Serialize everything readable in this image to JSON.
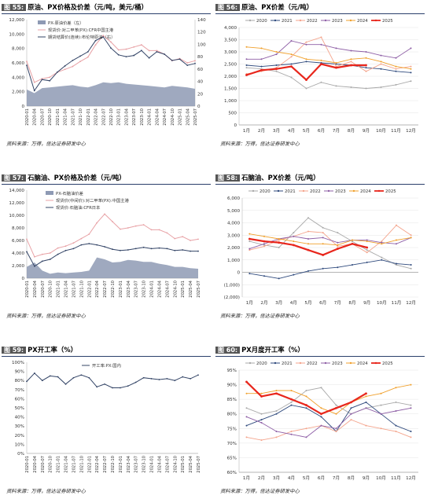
{
  "source_label": "资料来源：万得，信达证券研发中心",
  "panels": [
    {
      "num": "图 55:",
      "title": "原油、PX价格及价差（元/吨，美元/桶）"
    },
    {
      "num": "图 56:",
      "title": "原油、PX价差（元/吨）"
    },
    {
      "num": "图 57:",
      "title": "石脑油、PX价格及价差（元/吨）"
    },
    {
      "num": "图 58:",
      "title": "石脑油、PX价差（元/吨）"
    },
    {
      "num": "图 59:",
      "title": "PX开工率（%）"
    },
    {
      "num": "图 60:",
      "title": "PX月度开工率（%）"
    }
  ],
  "colors": {
    "area": "#8e9ab4",
    "pink": "#e8a2a6",
    "navy": "#334466",
    "s2020": "#a9a9a9",
    "s2021": "#2f4a7d",
    "s2022": "#f4a48c",
    "s2023": "#8e5fa6",
    "s2024": "#f0a02c",
    "s2025": "#e8261c",
    "rule": "#2a3f6b"
  },
  "chart_data": [
    {
      "type": "line",
      "title": "原油、PX价格及价差（元/吨，美元/桶）",
      "x": [
        "2020-01",
        "2020-04",
        "2020-07",
        "2020-10",
        "2021-01",
        "2021-04",
        "2021-07",
        "2021-10",
        "2022-01",
        "2022-04",
        "2022-07",
        "2022-10",
        "2023-01",
        "2023-04",
        "2023-07",
        "2023-10",
        "2024-01",
        "2024-04",
        "2024-07",
        "2024-10",
        "2025-01",
        "2025-04",
        "2025-07"
      ],
      "ylim_left": [
        0,
        12000
      ],
      "yticks_left": [
        0,
        2000,
        4000,
        6000,
        8000,
        10000,
        12000
      ],
      "ylim_right": [
        0,
        140
      ],
      "yticks_right": [
        0,
        20,
        40,
        60,
        80,
        100,
        120,
        140
      ],
      "series": [
        {
          "name": "PX-原油价差（左）",
          "style": "area",
          "axis": "left",
          "values": [
            2300,
            1800,
            2500,
            2600,
            2700,
            2800,
            2900,
            2700,
            2600,
            2900,
            3300,
            3200,
            3300,
            3100,
            3000,
            2900,
            2800,
            2700,
            2600,
            2800,
            2700,
            2600,
            2400
          ]
        },
        {
          "name": "现货价:对二甲苯(PX):CFR中国主港",
          "style": "line",
          "axis": "left",
          "values": [
            6200,
            3300,
            3800,
            4000,
            4700,
            5100,
            5500,
            6200,
            6800,
            8500,
            9800,
            8900,
            7800,
            7900,
            8200,
            8500,
            7700,
            7700,
            7200,
            6300,
            6600,
            6000,
            6300
          ]
        },
        {
          "name": "期货结算价(连续):布伦特原油（右）",
          "style": "line",
          "axis": "right",
          "values": [
            66,
            25,
            43,
            41,
            55,
            65,
            74,
            81,
            88,
            106,
            112,
            94,
            83,
            80,
            82,
            90,
            78,
            88,
            84,
            74,
            76,
            66,
            69
          ]
        }
      ]
    },
    {
      "type": "line",
      "title": "原油、PX价差（元/吨）",
      "categories": [
        "1月",
        "2月",
        "3月",
        "4月",
        "5月",
        "6月",
        "7月",
        "8月",
        "9月",
        "10月",
        "11月",
        "12月"
      ],
      "ylim": [
        0,
        4000
      ],
      "yticks": [
        0,
        500,
        1000,
        1500,
        2000,
        2500,
        3000,
        3500,
        4000
      ],
      "series": [
        {
          "name": "2020",
          "values": [
            2350,
            2300,
            2200,
            1950,
            1500,
            1750,
            1600,
            1550,
            1500,
            1550,
            1650,
            1800
          ]
        },
        {
          "name": "2021",
          "values": [
            2450,
            2400,
            2450,
            2500,
            2600,
            2550,
            2500,
            2450,
            2350,
            2300,
            2200,
            2150
          ]
        },
        {
          "name": "2022",
          "values": [
            2100,
            2200,
            2350,
            2800,
            3400,
            3600,
            2400,
            2600,
            2200,
            2500,
            2300,
            2400
          ]
        },
        {
          "name": "2023",
          "values": [
            2700,
            2700,
            2900,
            3450,
            3300,
            3300,
            3150,
            3050,
            3000,
            2850,
            2750,
            3150
          ]
        },
        {
          "name": "2024",
          "values": [
            3200,
            3150,
            3000,
            2900,
            2700,
            2650,
            2550,
            2700,
            2750,
            2600,
            2400,
            2300
          ]
        },
        {
          "name": "2025",
          "values": [
            2050,
            2250,
            2300,
            2400,
            1850,
            2500,
            2350,
            2450,
            2450,
            null,
            null,
            null
          ]
        }
      ]
    },
    {
      "type": "line",
      "title": "石脑油、PX价格及价差（元/吨）",
      "x": [
        "2020-01",
        "2020-04",
        "2020-07",
        "2020-10",
        "2021-01",
        "2021-04",
        "2021-07",
        "2021-10",
        "2022-01",
        "2022-04",
        "2022-07",
        "2022-10",
        "2023-01",
        "2023-04",
        "2023-07",
        "2023-10",
        "2024-01",
        "2024-04",
        "2024-07",
        "2024-10",
        "2025-01",
        "2025-04",
        "2025-07"
      ],
      "ylim": [
        0,
        14000
      ],
      "yticks": [
        0,
        2000,
        4000,
        6000,
        8000,
        10000,
        12000,
        14000
      ],
      "series": [
        {
          "name": "PX-石脑油价差",
          "style": "area",
          "values": [
            1800,
            2500,
            1200,
            700,
            900,
            800,
            900,
            1000,
            1200,
            3300,
            3000,
            2500,
            2600,
            2900,
            2800,
            2600,
            2600,
            2300,
            2100,
            1800,
            1800,
            1600,
            1500
          ]
        },
        {
          "name": "现货价(中间价):对二甲苯(PX):中国主港",
          "style": "line",
          "values": [
            6200,
            3400,
            3800,
            4000,
            4800,
            5100,
            5600,
            6300,
            7000,
            8800,
            10200,
            9000,
            7800,
            8000,
            8300,
            8500,
            7700,
            7700,
            7200,
            6300,
            6600,
            6000,
            6200
          ]
        },
        {
          "name": "现货价:石脑油:CFR日本",
          "style": "line",
          "values": [
            4200,
            1900,
            2700,
            3000,
            3800,
            4400,
            4700,
            5300,
            5500,
            5300,
            5000,
            4600,
            4400,
            4500,
            4700,
            4900,
            4700,
            4800,
            4700,
            4400,
            4500,
            4300,
            4300
          ]
        }
      ]
    },
    {
      "type": "line",
      "title": "石脑油、PX价差（元/吨）",
      "categories": [
        "1月",
        "2月",
        "3月",
        "4月",
        "5月",
        "6月",
        "7月",
        "8月",
        "9月",
        "10月",
        "11月",
        "12月"
      ],
      "ylim": [
        -2000,
        6000
      ],
      "yticks": [
        -2000,
        -1000,
        0,
        1000,
        2000,
        3000,
        4000,
        5000,
        6000
      ],
      "ytick_labels": [
        "(2,000)",
        "(1,000)",
        "0",
        "1,000",
        "2,000",
        "3,000",
        "4,000",
        "5,000",
        "6,000"
      ],
      "series": [
        {
          "name": "2020",
          "values": [
            2500,
            2200,
            2000,
            3200,
            4400,
            3600,
            3200,
            2500,
            1800,
            1200,
            600,
            300
          ]
        },
        {
          "name": "2021",
          "values": [
            -100,
            -300,
            -500,
            -200,
            100,
            300,
            400,
            600,
            800,
            1000,
            700,
            600
          ]
        },
        {
          "name": "2022",
          "values": [
            1800,
            2100,
            2600,
            2900,
            3300,
            3200,
            2100,
            2300,
            1600,
            2500,
            3800,
            3000
          ]
        },
        {
          "name": "2023",
          "values": [
            1900,
            2300,
            2700,
            2900,
            2700,
            2800,
            2400,
            2600,
            2600,
            2400,
            2300,
            2800
          ]
        },
        {
          "name": "2024",
          "values": [
            3100,
            2900,
            2700,
            2500,
            2300,
            2300,
            2200,
            2600,
            2500,
            2300,
            2600,
            2800
          ]
        },
        {
          "name": "2025",
          "values": [
            2700,
            2500,
            2400,
            2200,
            1800,
            1400,
            1900,
            2300,
            2000,
            null,
            null,
            null
          ]
        }
      ]
    },
    {
      "type": "line",
      "title": "PX开工率（%）",
      "x": [
        "2020-01",
        "2020-04",
        "2020-07",
        "2020-10",
        "2021-01",
        "2021-04",
        "2021-07",
        "2021-10",
        "2022-01",
        "2022-04",
        "2022-07",
        "2022-10",
        "2023-01",
        "2023-04",
        "2023-07",
        "2023-10",
        "2024-01",
        "2024-04",
        "2024-07",
        "2024-10",
        "2025-01",
        "2025-04",
        "2025-07"
      ],
      "ylim": [
        0,
        100
      ],
      "yticks": [
        0,
        10,
        20,
        30,
        40,
        50,
        60,
        70,
        80,
        90,
        100
      ],
      "ytick_labels": [
        "0%",
        "10%",
        "20%",
        "30%",
        "40%",
        "50%",
        "60%",
        "70%",
        "80%",
        "90%",
        "100%"
      ],
      "series": [
        {
          "name": "开工率:PX:国内",
          "values": [
            79,
            88,
            80,
            85,
            84,
            76,
            83,
            86,
            83,
            73,
            76,
            72,
            72,
            74,
            78,
            83,
            82,
            81,
            82,
            80,
            84,
            82,
            86
          ]
        }
      ]
    },
    {
      "type": "line",
      "title": "PX月度开工率（%）",
      "categories": [
        "1月",
        "2月",
        "3月",
        "4月",
        "5月",
        "6月",
        "7月",
        "8月",
        "9月",
        "10月",
        "11月",
        "12月"
      ],
      "ylim": [
        60,
        95
      ],
      "yticks": [
        60,
        65,
        70,
        75,
        80,
        85,
        90,
        95
      ],
      "ytick_labels": [
        "60%",
        "65%",
        "70%",
        "75%",
        "80%",
        "85%",
        "90%",
        "95%"
      ],
      "series": [
        {
          "name": "2020",
          "values": [
            82,
            80,
            81,
            84,
            88,
            89,
            83,
            80,
            82,
            83,
            84,
            83
          ]
        },
        {
          "name": "2021",
          "values": [
            76,
            78,
            80,
            83,
            82,
            79,
            74,
            82,
            84,
            80,
            76,
            74
          ]
        },
        {
          "name": "2022",
          "values": [
            72,
            71,
            72,
            74,
            75,
            76,
            74,
            78,
            76,
            75,
            74,
            72
          ]
        },
        {
          "name": "2023",
          "values": [
            79,
            77,
            74,
            73,
            72,
            76,
            75,
            80,
            82,
            80,
            81,
            82
          ]
        },
        {
          "name": "2024",
          "values": [
            87,
            87,
            88,
            88,
            86,
            82,
            80,
            84,
            86,
            87,
            89,
            90
          ]
        },
        {
          "name": "2025",
          "values": [
            91,
            86,
            87,
            85,
            83,
            80,
            82,
            84,
            87,
            null,
            null,
            null
          ]
        }
      ]
    }
  ]
}
